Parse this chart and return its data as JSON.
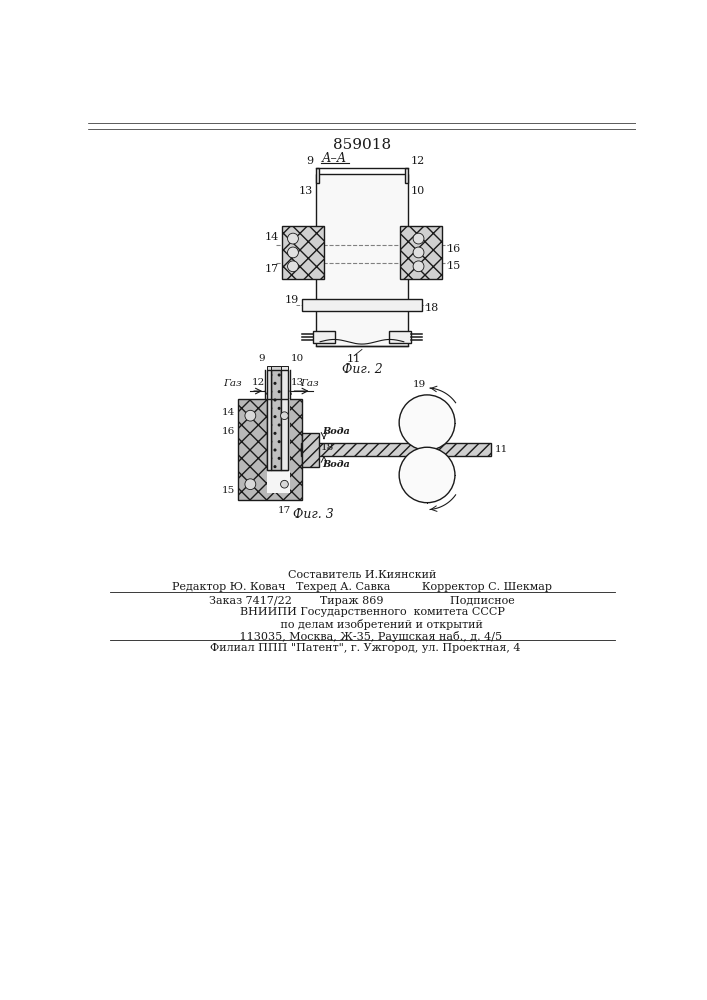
{
  "patent_number": "859018",
  "fig2_caption": "Фиг. 2",
  "fig3_caption": "Фиг. 3",
  "bg_color": "#ffffff",
  "line_color": "#1a1a1a",
  "footer_lines": [
    "Составитель И.Киянский",
    "Редактор Ю. Ковач   Техред А. Савка         Корректор С. Шекмар",
    "Заказ 7417/22        Тираж 869                   Подписное",
    "      ВНИИПИ Государственного  комитета СССР",
    "           по делам изобретений и открытий",
    "     113035, Москва, Ж-35, Раушская наб., д. 4/5",
    "  Филиал ППП \"Патент\", г. Ужгород, ул. Проектная, 4"
  ]
}
